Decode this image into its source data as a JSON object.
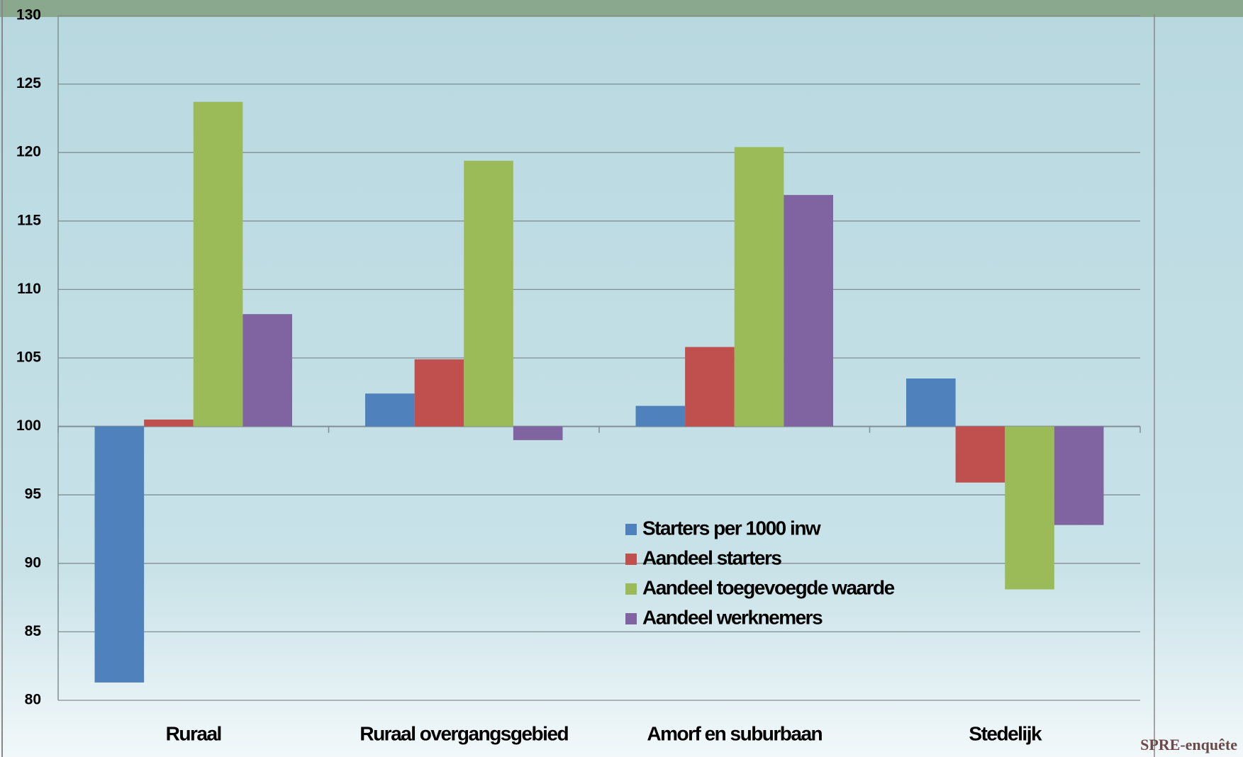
{
  "chart_data": {
    "type": "bar",
    "categories": [
      "Ruraal",
      "Ruraal overgangsgebied",
      "Amorf en suburbaan",
      "Stedelijk"
    ],
    "series": [
      {
        "name": "Starters per 1000 inw",
        "color": "#4f81bd",
        "values": [
          81.3,
          102.4,
          101.5,
          103.5
        ]
      },
      {
        "name": "Aandeel starters",
        "color": "#c0504d",
        "values": [
          100.5,
          104.9,
          105.8,
          95.9
        ]
      },
      {
        "name": "Aandeel toegevoegde waarde",
        "color": "#9bbb59",
        "values": [
          123.7,
          119.4,
          120.4,
          88.1
        ]
      },
      {
        "name": "Aandeel werknemers",
        "color": "#8064a2",
        "values": [
          108.2,
          99.0,
          116.9,
          92.8
        ]
      }
    ],
    "ylim": [
      80,
      130
    ],
    "yticks": [
      80,
      85,
      90,
      95,
      100,
      105,
      110,
      115,
      120,
      125,
      130
    ],
    "base": 100,
    "grid": true,
    "source": "SPRE-enquête"
  }
}
